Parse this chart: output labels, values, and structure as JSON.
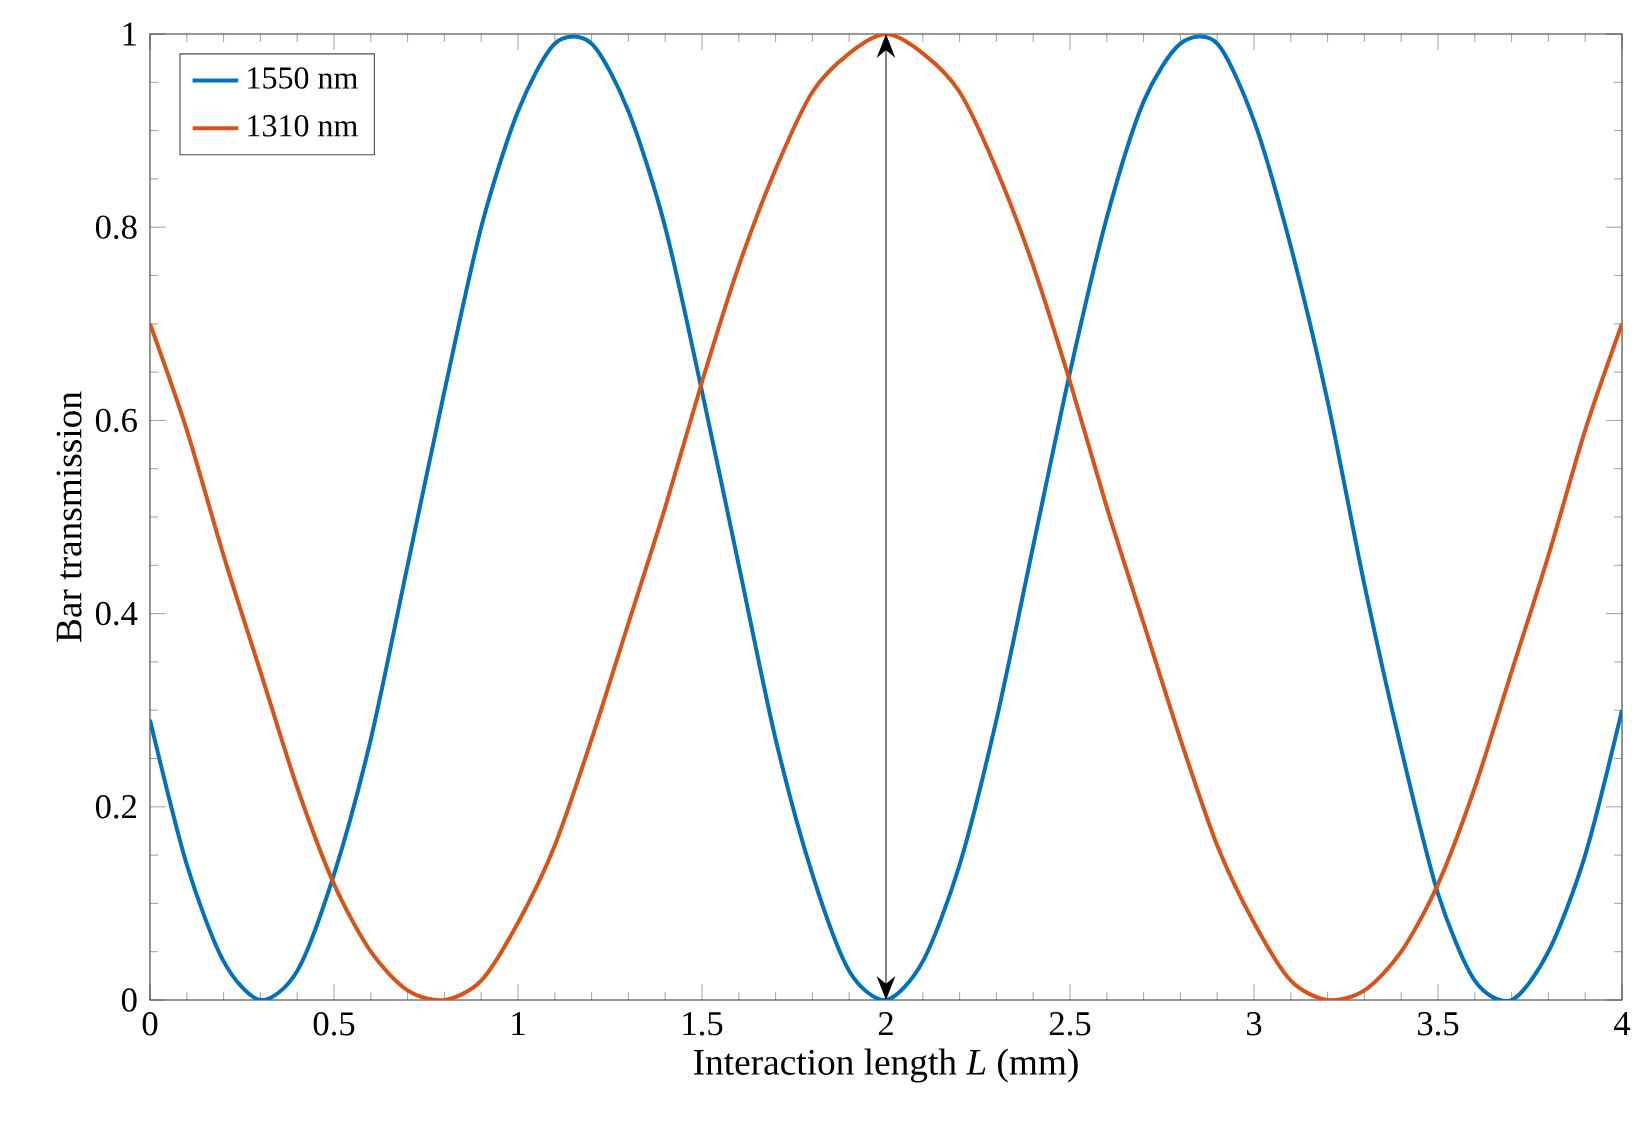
{
  "chart_data": {
    "type": "line",
    "xlabel": "Interaction length *L* (mm)",
    "ylabel": "Bar transmission",
    "x": [
      0,
      0.1,
      0.2,
      0.3,
      0.4,
      0.5,
      0.6,
      0.7,
      0.8,
      0.9,
      1,
      1.1,
      1.2,
      1.3,
      1.4,
      1.5,
      1.6,
      1.7,
      1.8,
      1.9,
      2,
      2.1,
      2.2,
      2.3,
      2.4,
      2.5,
      2.6,
      2.7,
      2.8,
      2.9,
      3,
      3.1,
      3.2,
      3.3,
      3.4,
      3.5,
      3.6,
      3.7,
      3.8,
      3.9,
      4
    ],
    "series": [
      {
        "name": "1550 nm",
        "color": "#0072bd",
        "values": [
          0.29,
          0.14,
          0.04,
          0.0,
          0.03,
          0.13,
          0.27,
          0.45,
          0.63,
          0.8,
          0.92,
          0.99,
          0.99,
          0.92,
          0.8,
          0.63,
          0.45,
          0.27,
          0.13,
          0.03,
          0.0,
          0.04,
          0.14,
          0.29,
          0.47,
          0.65,
          0.81,
          0.93,
          0.99,
          0.99,
          0.91,
          0.78,
          0.62,
          0.43,
          0.26,
          0.11,
          0.02,
          0.0,
          0.05,
          0.15,
          0.3
        ]
      },
      {
        "name": "1310 nm",
        "color": "#d95319",
        "values": [
          0.7,
          0.59,
          0.46,
          0.34,
          0.22,
          0.12,
          0.05,
          0.01,
          0.0,
          0.02,
          0.08,
          0.16,
          0.27,
          0.39,
          0.51,
          0.64,
          0.76,
          0.86,
          0.94,
          0.98,
          1.0,
          0.98,
          0.94,
          0.86,
          0.76,
          0.64,
          0.51,
          0.39,
          0.27,
          0.16,
          0.08,
          0.02,
          0.0,
          0.01,
          0.05,
          0.12,
          0.22,
          0.34,
          0.46,
          0.59,
          0.7
        ]
      }
    ],
    "xlim": [
      0,
      4
    ],
    "xticks": [
      0,
      0.5,
      1,
      1.5,
      2,
      2.5,
      3,
      3.5,
      4
    ],
    "ylim": [
      0,
      1
    ],
    "yticks": [
      0,
      0.2,
      0.4,
      0.6,
      0.8,
      1
    ],
    "legend": "top left",
    "marker": "none",
    "line_style": "solid"
  }
}
